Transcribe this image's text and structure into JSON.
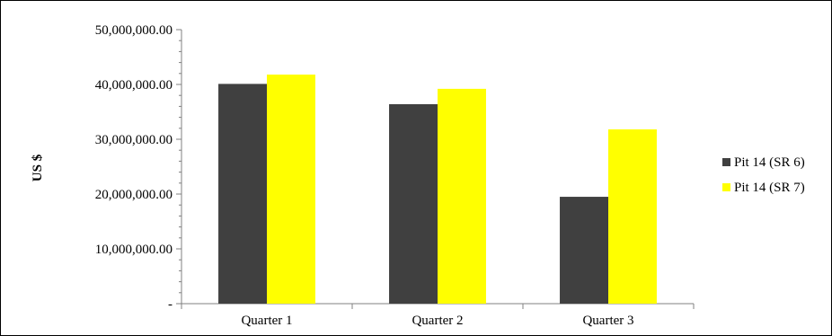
{
  "chart_data": {
    "type": "bar",
    "title": "",
    "xlabel": "",
    "ylabel": "US $",
    "ylim": [
      0,
      50000000
    ],
    "yticks": [
      0,
      10000000,
      20000000,
      30000000,
      40000000,
      50000000
    ],
    "ytick_labels": [
      "-",
      "10,000,000.00",
      "20,000,000.00",
      "30,000,000.00",
      "40,000,000.00",
      "50,000,000.00"
    ],
    "categories": [
      "Quarter 1",
      "Quarter 2",
      "Quarter 3"
    ],
    "series": [
      {
        "name": "Pit 14 (SR 6)",
        "color": "#404040",
        "values": [
          40100000,
          36400000,
          19500000
        ]
      },
      {
        "name": "Pit 14 (SR 7)",
        "color": "#ffff00",
        "values": [
          41800000,
          39200000,
          31800000
        ]
      }
    ],
    "grid": false,
    "legend_position": "right"
  }
}
